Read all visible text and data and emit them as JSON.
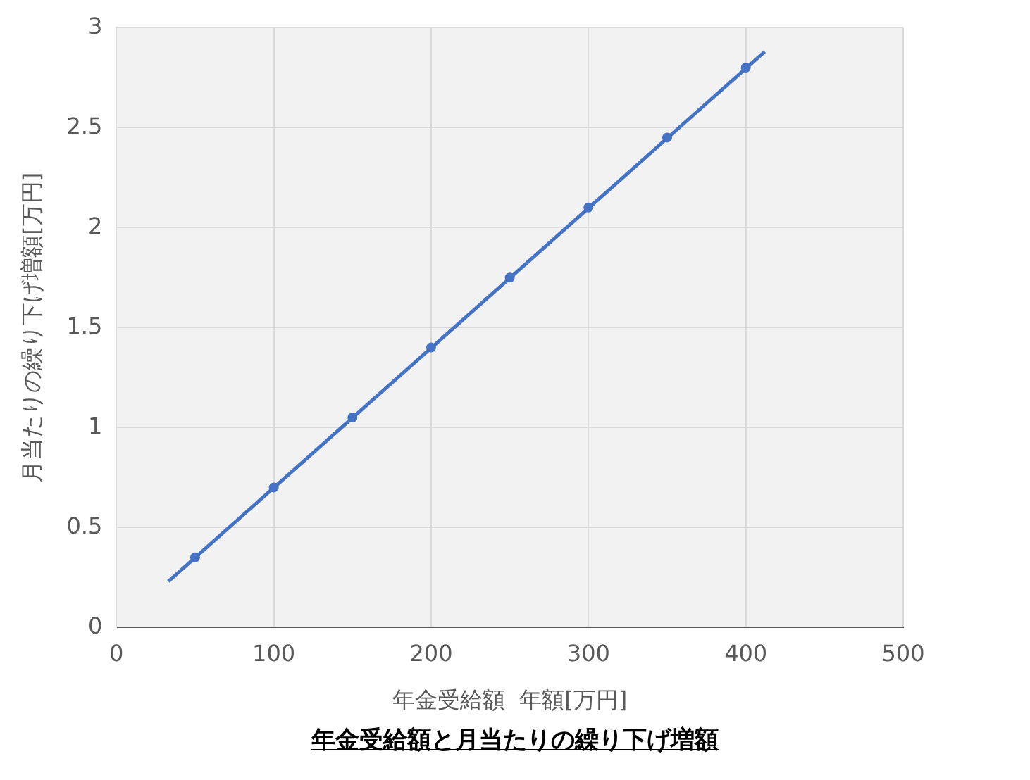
{
  "chart_data": {
    "type": "scatter",
    "title": "年金受給額と月当たりの繰り下げ増額",
    "xlabel": "年金受給額  年額[万円]",
    "ylabel": "月当たりの繰り下げ増額[万円]",
    "x": [
      50,
      100,
      150,
      200,
      250,
      300,
      350,
      400
    ],
    "series": [
      {
        "color": "#4472c4",
        "values": [
          0.35,
          0.7,
          1.05,
          1.4,
          1.75,
          2.1,
          2.45,
          2.8
        ]
      },
      {
        "type": "line",
        "marker": "none",
        "color": "#4472c4",
        "x": [
          33,
          412
        ],
        "values": [
          0.23,
          2.88
        ]
      }
    ],
    "xlim": [
      0,
      500
    ],
    "xticks": [
      0,
      100,
      200,
      300,
      400,
      500
    ],
    "ylim": [
      0,
      3
    ],
    "yticks": [
      0,
      0.5,
      1,
      1.5,
      2,
      2.5,
      3
    ],
    "grid": true,
    "legend": false,
    "marker": "circle",
    "line_style": "solid"
  }
}
